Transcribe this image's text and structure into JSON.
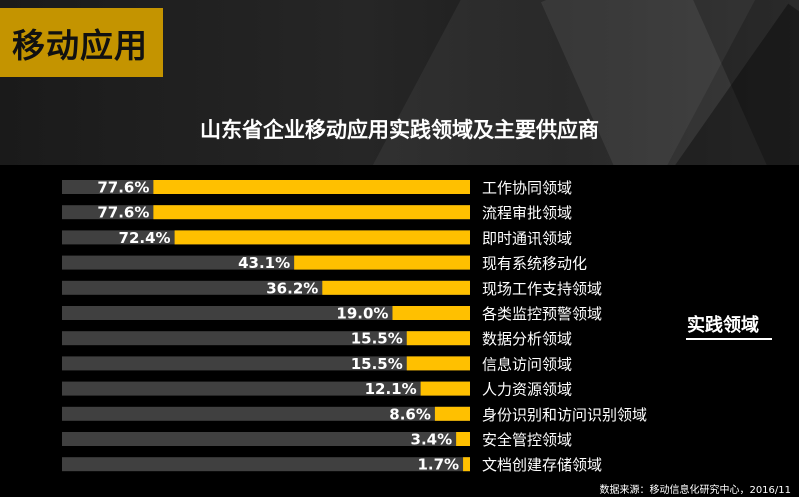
{
  "section_badge": "移动应用",
  "chart_data": {
    "type": "bar",
    "orientation": "horizontal",
    "title": "山东省企业移动应用实践领域及主要供应商",
    "categories": [
      "工作协同领域",
      "流程审批领域",
      "即时通讯领域",
      "现有系统移动化",
      "现场工作支持领域",
      "各类监控预警领域",
      "数据分析领域",
      "信息访问领域",
      "人力资源领域",
      "身份识别和访问识别领域",
      "安全管控领域",
      "文档创建存储领域"
    ],
    "values": [
      77.6,
      77.6,
      72.4,
      43.1,
      36.2,
      19.0,
      15.5,
      15.5,
      12.1,
      8.6,
      3.4,
      1.7
    ],
    "value_labels": [
      "77.6%",
      "77.6%",
      "72.4%",
      "43.1%",
      "36.2%",
      "19.0%",
      "15.5%",
      "15.5%",
      "12.1%",
      "8.6%",
      "3.4%",
      "1.7%"
    ],
    "xlim": [
      0,
      100
    ],
    "bar_color": "#ffc000",
    "track_color": "#404040",
    "group_label": "实践领域"
  },
  "source_note": "数据来源：移动信息化研究中心，2016/11"
}
